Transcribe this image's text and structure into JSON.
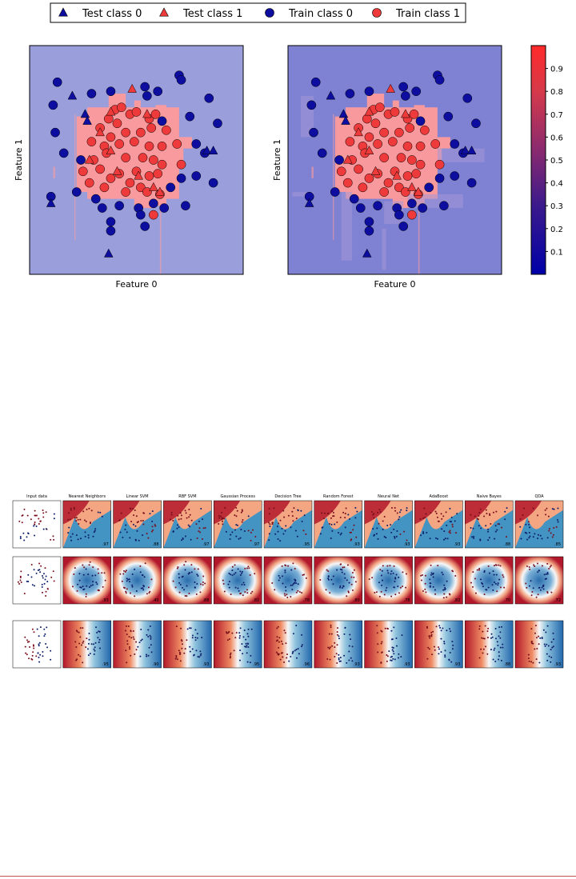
{
  "legend": {
    "items": [
      {
        "label": "Test class 0",
        "marker": "triangle",
        "color": "#0d1f8c"
      },
      {
        "label": "Test class 1",
        "marker": "triangle",
        "color": "#f03c3c"
      },
      {
        "label": "Train class 0",
        "marker": "circle",
        "color": "#0d1f8c"
      },
      {
        "label": "Train class 1",
        "marker": "circle",
        "color": "#f03c3c"
      }
    ]
  },
  "colors": {
    "class0": "#0d0ea0",
    "class1": "#ee3a3a",
    "left_bg": "#9a9fdc",
    "right_bg": "#7f82d2",
    "region1": "#ff9b9b",
    "grid_red": "#b2182b",
    "grid_blue": "#2166ac"
  },
  "chart_data": [
    {
      "type": "scatter",
      "panel": "left",
      "xlabel": "Feature 0",
      "ylabel": "Feature 1",
      "grid": false,
      "series": [
        {
          "name": "Train class 0",
          "points": [
            [
              0.13,
              0.16
            ],
            [
              0.29,
              0.21
            ],
            [
              0.38,
              0.2
            ],
            [
              0.54,
              0.18
            ],
            [
              0.55,
              0.22
            ],
            [
              0.7,
              0.13
            ],
            [
              0.71,
              0.15
            ],
            [
              0.84,
              0.23
            ],
            [
              0.88,
              0.34
            ],
            [
              0.62,
              0.33
            ],
            [
              0.75,
              0.31
            ],
            [
              0.78,
              0.43
            ],
            [
              0.82,
              0.47
            ],
            [
              0.11,
              0.26
            ],
            [
              0.12,
              0.38
            ],
            [
              0.16,
              0.47
            ],
            [
              0.24,
              0.5
            ],
            [
              0.22,
              0.64
            ],
            [
              0.1,
              0.66
            ],
            [
              0.31,
              0.67
            ],
            [
              0.34,
              0.71
            ],
            [
              0.42,
              0.7
            ],
            [
              0.51,
              0.71
            ],
            [
              0.58,
              0.69
            ],
            [
              0.66,
              0.62
            ],
            [
              0.71,
              0.58
            ],
            [
              0.78,
              0.57
            ],
            [
              0.86,
              0.6
            ],
            [
              0.63,
              0.71
            ],
            [
              0.52,
              0.74
            ],
            [
              0.38,
              0.77
            ],
            [
              0.38,
              0.81
            ],
            [
              0.54,
              0.79
            ],
            [
              0.73,
              0.7
            ],
            [
              0.6,
              0.2
            ]
          ]
        },
        {
          "name": "Train class 1",
          "points": [
            [
              0.4,
              0.28
            ],
            [
              0.43,
              0.27
            ],
            [
              0.47,
              0.3
            ],
            [
              0.5,
              0.29
            ],
            [
              0.37,
              0.32
            ],
            [
              0.41,
              0.34
            ],
            [
              0.56,
              0.32
            ],
            [
              0.59,
              0.3
            ],
            [
              0.33,
              0.36
            ],
            [
              0.45,
              0.38
            ],
            [
              0.52,
              0.38
            ],
            [
              0.57,
              0.36
            ],
            [
              0.64,
              0.37
            ],
            [
              0.38,
              0.4
            ],
            [
              0.29,
              0.42
            ],
            [
              0.35,
              0.44
            ],
            [
              0.42,
              0.43
            ],
            [
              0.49,
              0.42
            ],
            [
              0.56,
              0.44
            ],
            [
              0.62,
              0.44
            ],
            [
              0.69,
              0.43
            ],
            [
              0.36,
              0.47
            ],
            [
              0.45,
              0.49
            ],
            [
              0.53,
              0.49
            ],
            [
              0.3,
              0.5
            ],
            [
              0.58,
              0.5
            ],
            [
              0.62,
              0.52
            ],
            [
              0.25,
              0.55
            ],
            [
              0.33,
              0.54
            ],
            [
              0.42,
              0.56
            ],
            [
              0.5,
              0.55
            ],
            [
              0.56,
              0.57
            ],
            [
              0.6,
              0.56
            ],
            [
              0.38,
              0.58
            ],
            [
              0.47,
              0.6
            ],
            [
              0.28,
              0.6
            ],
            [
              0.35,
              0.62
            ],
            [
              0.52,
              0.62
            ],
            [
              0.45,
              0.64
            ],
            [
              0.55,
              0.64
            ],
            [
              0.61,
              0.65
            ],
            [
              0.71,
              0.52
            ],
            [
              0.58,
              0.74
            ]
          ]
        },
        {
          "name": "Test class 0",
          "points": [
            [
              0.2,
              0.22
            ],
            [
              0.26,
              0.3
            ],
            [
              0.27,
              0.33
            ],
            [
              0.83,
              0.46
            ],
            [
              0.86,
              0.46
            ],
            [
              0.1,
              0.69
            ],
            [
              0.37,
              0.91
            ]
          ]
        },
        {
          "name": "Test class 1",
          "points": [
            [
              0.48,
              0.19
            ],
            [
              0.38,
              0.29
            ],
            [
              0.55,
              0.3
            ],
            [
              0.38,
              0.46
            ],
            [
              0.28,
              0.5
            ],
            [
              0.41,
              0.55
            ],
            [
              0.51,
              0.57
            ],
            [
              0.58,
              0.62
            ],
            [
              0.61,
              0.64
            ],
            [
              0.33,
              0.38
            ]
          ]
        }
      ]
    },
    {
      "type": "scatter",
      "panel": "right",
      "xlabel": "Feature 0",
      "ylabel": "Feature 1",
      "grid": false
    },
    {
      "type": "heatmap",
      "panel": "colorbar",
      "ticks": [
        "0.1",
        "0.2",
        "0.3",
        "0.4",
        "0.5",
        "0.6",
        "0.7",
        "0.8",
        "0.9"
      ],
      "ylim": [
        0,
        1
      ]
    },
    {
      "type": "heatmap",
      "panel": "classifier-comparison-grid",
      "columns": [
        "Input data",
        "Nearest Neighbors",
        "Linear SVM",
        "RBF SVM",
        "Gaussian Process",
        "Decision Tree",
        "Random Forest",
        "Neural Net",
        "AdaBoost",
        "Naive Bayes",
        "QDA"
      ],
      "rows": [
        {
          "scores": [
            "",
            ".97",
            ".88",
            ".97",
            ".97",
            ".95",
            ".93",
            ".93",
            ".93",
            ".88",
            ".85"
          ],
          "pattern": "moons"
        },
        {
          "scores": [
            "",
            ".93",
            ".40",
            ".88",
            ".82",
            ".78",
            ".80",
            ".78",
            ".82",
            ".70",
            ".72"
          ],
          "pattern": "circles"
        },
        {
          "scores": [
            "",
            ".95",
            ".90",
            ".93",
            ".95",
            ".96",
            ".93",
            ".93",
            ".93",
            ".88",
            ".93"
          ],
          "pattern": "linear"
        }
      ]
    }
  ]
}
